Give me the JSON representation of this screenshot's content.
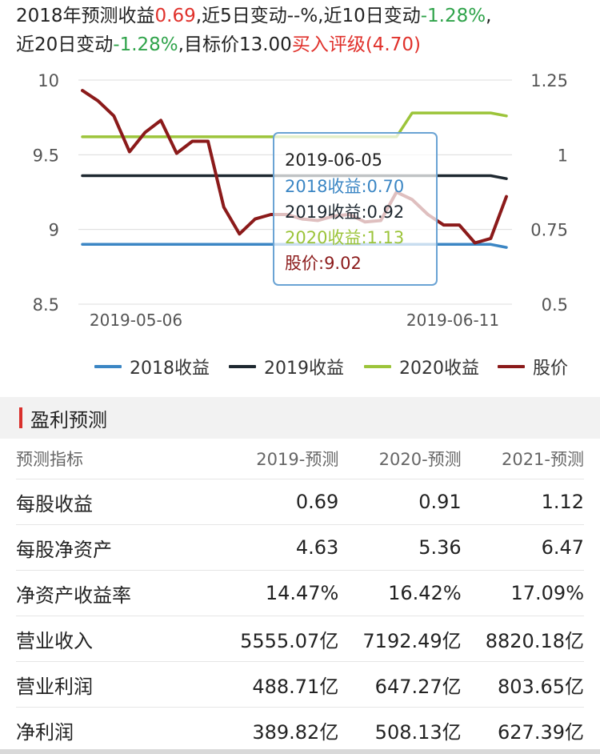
{
  "summary": {
    "line1_prefix": "2018年预测收益",
    "eps": "0.69",
    "chg5_label": ",近5日变动",
    "chg5": "--%",
    "chg10_label": ",近10日变动",
    "chg10": "-1.28%",
    "line1_end": ",",
    "chg20_label": "近20日变动",
    "chg20": "-1.28%",
    "target_label": ",目标价",
    "target_price": "13.00",
    "rating": "买入评级(4.70)"
  },
  "colors": {
    "s2018": "#3b86c4",
    "s2019": "#1e2830",
    "s2020": "#9cc43a",
    "price": "#8b1a1a",
    "red": "#e0312b",
    "green": "#2fa34a"
  },
  "chart_data": {
    "type": "line",
    "x_ticks": [
      "2019-05-06",
      "2019-06-11"
    ],
    "left_axis": {
      "ticks": [
        "10",
        "9.5",
        "9",
        "8.5"
      ],
      "range": [
        8.5,
        10
      ]
    },
    "right_axis": {
      "ticks": [
        "1.25",
        "1",
        "0.75",
        "0.5"
      ],
      "range": [
        0.5,
        1.25
      ]
    },
    "series": [
      {
        "name": "2018收益",
        "axis": "right",
        "color": "#3b86c4",
        "values": [
          0.7,
          0.7,
          0.7,
          0.7,
          0.7,
          0.7,
          0.7,
          0.7,
          0.7,
          0.7,
          0.7,
          0.7,
          0.7,
          0.7,
          0.7,
          0.7,
          0.7,
          0.7,
          0.7,
          0.7,
          0.7,
          0.7,
          0.7,
          0.7,
          0.7,
          0.7,
          0.7,
          0.69
        ]
      },
      {
        "name": "2019收益",
        "axis": "right",
        "color": "#1e2830",
        "values": [
          0.93,
          0.93,
          0.93,
          0.93,
          0.93,
          0.93,
          0.93,
          0.93,
          0.93,
          0.93,
          0.93,
          0.93,
          0.93,
          0.93,
          0.93,
          0.93,
          0.93,
          0.93,
          0.93,
          0.93,
          0.93,
          0.93,
          0.93,
          0.93,
          0.93,
          0.93,
          0.93,
          0.92
        ]
      },
      {
        "name": "2020收益",
        "axis": "right",
        "color": "#9cc43a",
        "values": [
          1.06,
          1.06,
          1.06,
          1.06,
          1.06,
          1.06,
          1.06,
          1.06,
          1.06,
          1.06,
          1.06,
          1.06,
          1.06,
          1.06,
          1.06,
          1.06,
          1.06,
          1.06,
          1.06,
          1.06,
          1.06,
          1.14,
          1.14,
          1.14,
          1.14,
          1.14,
          1.14,
          1.13
        ]
      },
      {
        "name": "股价",
        "axis": "left",
        "color": "#8b1a1a",
        "values": [
          9.93,
          9.86,
          9.76,
          9.52,
          9.65,
          9.73,
          9.51,
          9.59,
          9.59,
          9.15,
          8.97,
          9.07,
          9.1,
          9.1,
          9.07,
          9.06,
          9.09,
          9.1,
          9.05,
          9.06,
          9.25,
          9.2,
          9.1,
          9.03,
          9.03,
          8.91,
          8.94,
          9.22
        ]
      }
    ],
    "tooltip": {
      "date": "2019-06-05",
      "rows": [
        {
          "label": "2018收益:0.70",
          "color": "#3b86c4"
        },
        {
          "label": "2019收益:0.92",
          "color": "#1e2830"
        },
        {
          "label": "2020收益:1.13",
          "color": "#9cc43a"
        },
        {
          "label": "股价:9.02",
          "color": "#8b1a1a"
        }
      ]
    },
    "grid": true,
    "legend_position": "bottom"
  },
  "section": {
    "title": "盈利预测"
  },
  "table": {
    "headers": [
      "预测指标",
      "2019-预测",
      "2020-预测",
      "2021-预测"
    ],
    "rows": [
      [
        "每股收益",
        "0.69",
        "0.91",
        "1.12"
      ],
      [
        "每股净资产",
        "4.63",
        "5.36",
        "6.47"
      ],
      [
        "净资产收益率",
        "14.47%",
        "16.42%",
        "17.09%"
      ],
      [
        "营业收入",
        "5555.07亿",
        "7192.49亿",
        "8820.18亿"
      ],
      [
        "营业利润",
        "488.71亿",
        "647.27亿",
        "803.65亿"
      ],
      [
        "净利润",
        "389.82亿",
        "508.13亿",
        "627.39亿"
      ]
    ]
  }
}
